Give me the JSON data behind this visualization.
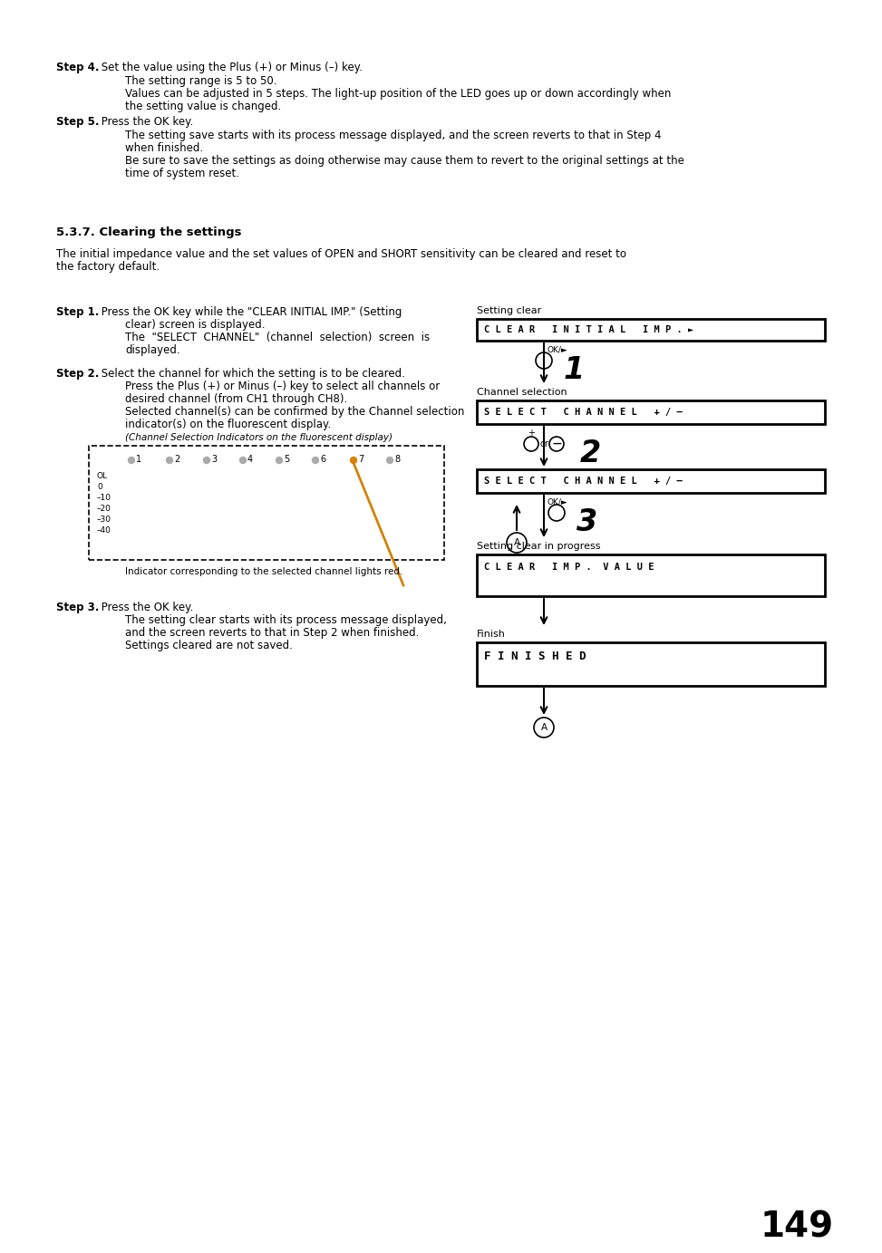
{
  "bg_color": "#ffffff",
  "page_number": "149",
  "step4_bold": "Step 4.",
  "step4_text1": " Set the value using the Plus (+) or Minus (–) key.",
  "step4_text2": "The setting range is 5 to 50.",
  "step4_text3": "Values can be adjusted in 5 steps. The light-up position of the LED goes up or down accordingly when",
  "step4_text4": "the setting value is changed.",
  "step5_bold": "Step 5.",
  "step5_text1": " Press the OK key.",
  "step5_text2": "The setting save starts with its process message displayed, and the screen reverts to that in Step 4",
  "step5_text3": "when finished.",
  "step5_text4": "Be sure to save the settings as doing otherwise may cause them to revert to the original settings at the",
  "step5_text5": "time of system reset.",
  "section_title": "5.3.7. Clearing the settings",
  "intro_text1": "The initial impedance value and the set values of OPEN and SHORT sensitivity can be cleared and reset to",
  "intro_text2": "the factory default.",
  "s1_bold": "Step 1.",
  "s1_t1": " Press the OK key while the \"CLEAR INITIAL IMP.\" (Setting",
  "s1_t2": "clear) screen is displayed.",
  "s1_t3": "The  \"SELECT  CHANNEL\"  (channel  selection)  screen  is",
  "s1_t4": "displayed.",
  "s2_bold": "Step 2.",
  "s2_t1": " Select the channel for which the setting is to be cleared.",
  "s2_t2": "Press the Plus (+) or Minus (–) key to select all channels or",
  "s2_t3": "desired channel (from CH1 through CH8).",
  "s2_t4": "Selected channel(s) can be confirmed by the Channel selection",
  "s2_t5": "indicator(s) on the fluorescent display.",
  "s2_caption": "(Channel Selection Indicators on the fluorescent display)",
  "s2_ind_caption": "Indicator corresponding to the selected channel lights red.",
  "s3_bold": "Step 3.",
  "s3_t1": " Press the OK key.",
  "s3_t2": "The setting clear starts with its process message displayed,",
  "s3_t3": "and the screen reverts to that in Step 2 when finished.",
  "s3_t4": "Settings cleared are not saved.",
  "box1_label": "Setting clear",
  "box1_text": "C L E A R   I N I T I A L   I M P . ►",
  "box2_label": "Channel selection",
  "box2_text": "S E L E C T   C H A N N E L   + / –",
  "box3_text": "S E L E C T   C H A N N E L   + / –",
  "box4_label": "Setting clear in progress",
  "box4_text": "C L E A R   I M P .  V A L U E",
  "box5_label": "Finish",
  "box5_text": "F I N I S H E D",
  "num1": "1",
  "num2": "2",
  "num3": "3",
  "ok_label": "OK/►",
  "channels": [
    "1",
    "2",
    "3",
    "4",
    "5",
    "6",
    "7",
    "8"
  ],
  "ch_levels": [
    "OL",
    "0",
    "–10",
    "–20",
    "–30",
    "–40"
  ],
  "orange_color": "#d4820a",
  "highlight_ch": 7
}
